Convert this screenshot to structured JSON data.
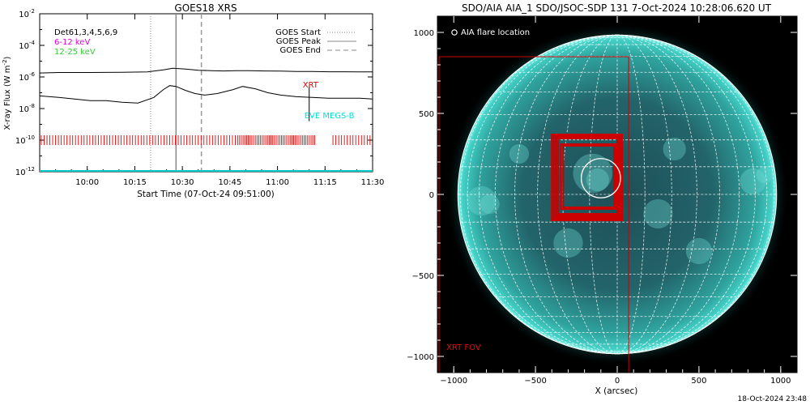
{
  "chart_data": [
    {
      "type": "line",
      "title": "GOES18 XRS",
      "xlabel": "Start Time (07-Oct-24 09:51:00)",
      "ylabel": "X-ray Flux (W m",
      "ylabel_sup": "-2",
      "ylabel_close": ")",
      "x_ticks": [
        "10:00",
        "10:15",
        "10:30",
        "10:45",
        "11:00",
        "11:15",
        "11:30"
      ],
      "y_ticks": [
        {
          "base": "10",
          "exp": "-2"
        },
        {
          "base": "10",
          "exp": "-4"
        },
        {
          "base": "10",
          "exp": "-6"
        },
        {
          "base": "10",
          "exp": "-8"
        },
        {
          "base": "10",
          "exp": "-10"
        },
        {
          "base": "10",
          "exp": "-12"
        }
      ],
      "xlim_minutes": [
        -6,
        99
      ],
      "ylim_log10": [
        -12,
        -2
      ],
      "y_scale": "log",
      "detector_label": "Det61,3,4,5,6,9",
      "energy_bands": [
        {
          "label": "6-12 keV",
          "color": "#dd00dd"
        },
        {
          "label": "12-25 keV",
          "color": "#33cc33"
        }
      ],
      "legend": [
        {
          "label": "GOES Start",
          "style": "dotted",
          "color": "#888888"
        },
        {
          "label": "GOES Peak",
          "style": "solid",
          "color": "#888888"
        },
        {
          "label": "GOES End",
          "style": "dashed",
          "color": "#888888"
        }
      ],
      "legend_position": "top-right",
      "event_lines_minutes": {
        "start": 29,
        "peak": 37,
        "end": 45
      },
      "series": [
        {
          "color": "#000000",
          "x_minutes": [
            -6,
            0,
            10,
            20,
            28,
            33,
            36,
            40,
            44,
            48,
            52,
            56,
            60,
            65,
            70,
            75,
            80,
            85,
            90,
            95,
            99
          ],
          "log10_flux": [
            -5.75,
            -5.72,
            -5.72,
            -5.71,
            -5.68,
            -5.55,
            -5.45,
            -5.5,
            -5.58,
            -5.6,
            -5.62,
            -5.6,
            -5.6,
            -5.62,
            -5.63,
            -5.65,
            -5.65,
            -5.67,
            -5.67,
            -5.68,
            -5.68
          ]
        },
        {
          "color": "#000000",
          "x_minutes": [
            -6,
            0,
            5,
            10,
            15,
            20,
            25,
            30,
            33,
            35,
            37,
            40,
            43,
            46,
            50,
            55,
            58,
            62,
            66,
            70,
            75,
            80,
            85,
            90,
            95,
            99
          ],
          "log10_flux": [
            -7.2,
            -7.3,
            -7.4,
            -7.5,
            -7.5,
            -7.6,
            -7.65,
            -7.3,
            -6.8,
            -6.55,
            -6.6,
            -6.85,
            -7.05,
            -7.15,
            -7.05,
            -6.8,
            -6.6,
            -6.75,
            -7.0,
            -7.15,
            -7.25,
            -7.3,
            -7.35,
            -7.35,
            -7.35,
            -7.4
          ]
        }
      ],
      "annotations": [
        {
          "label": "XRT",
          "color": "#dd0000"
        },
        {
          "label": "EVE MEGS-B",
          "color": "#00dddd"
        }
      ],
      "xrt_ticks_y_log10": -10.0,
      "xrt_ranges_minutes": [
        [
          -6,
          56
        ],
        [
          56,
          81
        ],
        [
          86,
          99
        ]
      ],
      "xrt_marker_minutes": 79,
      "eve_line_log10": -11.95
    },
    {
      "type": "scatter",
      "title": "SDO/AIA AIA_1 SDO/JSOC-SDP 131  7-Oct-2024 10:28:06.620 UT",
      "xlabel": "X (arcsec)",
      "ylabel": "",
      "x_ticks": [
        -1000,
        -500,
        0,
        500,
        1000
      ],
      "y_ticks": [
        1000,
        500,
        0,
        -500,
        -1000
      ],
      "xlim": [
        -1100,
        1100
      ],
      "ylim": [
        -1100,
        1100
      ],
      "solar_radius_arcsec": 975,
      "legend_item": "AIA flare location",
      "flare_location": {
        "x": -100,
        "y": 100
      },
      "xrt_fov_label": "XRT FOV",
      "xrt_fov": {
        "x0": -1090,
        "x1": 70,
        "y0": -1100,
        "y1": 850
      },
      "xrt_pointings": [
        {
          "x0": -400,
          "x1": 30,
          "y0": -160,
          "y1": 370
        },
        {
          "x0": -390,
          "x1": 25,
          "y0": -150,
          "y1": 365
        },
        {
          "x0": -380,
          "x1": 15,
          "y0": -140,
          "y1": 360
        },
        {
          "x0": -370,
          "x1": 10,
          "y0": -130,
          "y1": 350
        },
        {
          "x0": -360,
          "x1": 0,
          "y0": -120,
          "y1": 345
        },
        {
          "x0": -345,
          "x1": -10,
          "y0": -90,
          "y1": 310
        },
        {
          "x0": -330,
          "x1": -20,
          "y0": -80,
          "y1": 300
        }
      ],
      "colors": {
        "frame": "#000000",
        "sun": "#2fb8b0",
        "grid": "#ffffff",
        "box": "#cc0000"
      }
    }
  ],
  "timestamp": "18-Oct-2024 23:48"
}
